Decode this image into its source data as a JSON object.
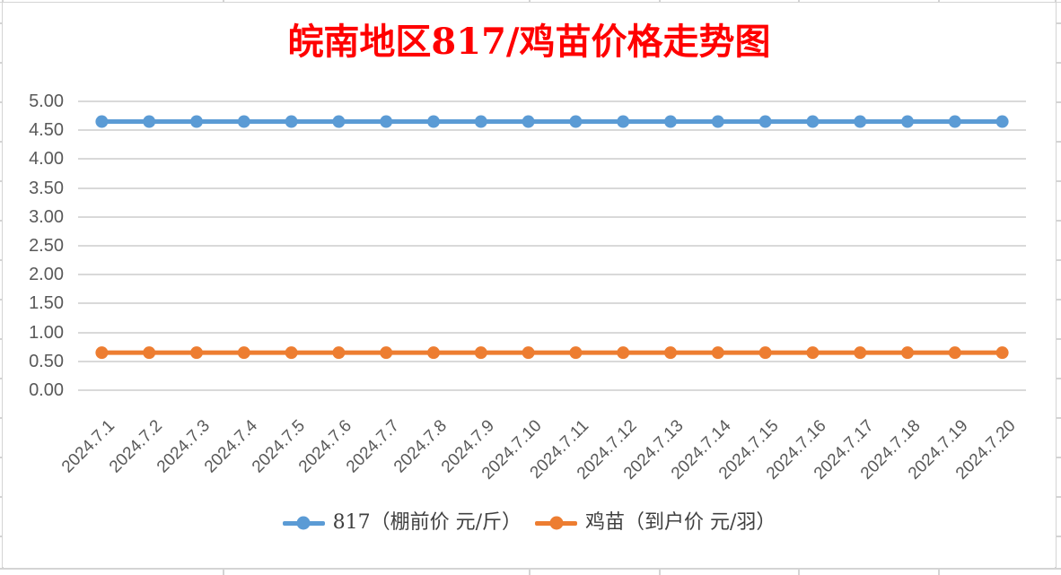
{
  "colors": {
    "title_text": "#FF0000",
    "series_817": "#5B9BD5",
    "series_jimiao": "#ED7D31",
    "gridline": "#D9D9D9",
    "axis_text": "#595959",
    "legend_text": "#404040",
    "spreadsheet_line": "#D4D4D4"
  },
  "chart_data": {
    "type": "line",
    "title": "皖南地区817/鸡苗价格走势图",
    "categories": [
      "2024.7.1",
      "2024.7.2",
      "2024.7.3",
      "2024.7.4",
      "2024.7.5",
      "2024.7.6",
      "2024.7.7",
      "2024.7.8",
      "2024.7.9",
      "2024.7.10",
      "2024.7.11",
      "2024.7.12",
      "2024.7.13",
      "2024.7.14",
      "2024.7.15",
      "2024.7.16",
      "2024.7.17",
      "2024.7.18",
      "2024.7.19",
      "2024.7.20"
    ],
    "series": [
      {
        "name": "817（棚前价 元/斤）",
        "color": "#5B9BD5",
        "values": [
          4.65,
          4.65,
          4.65,
          4.65,
          4.65,
          4.65,
          4.65,
          4.65,
          4.65,
          4.65,
          4.65,
          4.65,
          4.65,
          4.65,
          4.65,
          4.65,
          4.65,
          4.65,
          4.65,
          4.65
        ]
      },
      {
        "name": "鸡苗（到户价 元/羽）",
        "color": "#ED7D31",
        "values": [
          0.65,
          0.65,
          0.65,
          0.65,
          0.65,
          0.65,
          0.65,
          0.65,
          0.65,
          0.65,
          0.65,
          0.65,
          0.65,
          0.65,
          0.65,
          0.65,
          0.65,
          0.65,
          0.65,
          0.65
        ]
      }
    ],
    "ylim": [
      0,
      5
    ],
    "ytick_step": 0.5,
    "ytick_labels": [
      "5.00",
      "4.50",
      "4.00",
      "3.50",
      "3.00",
      "2.50",
      "2.00",
      "1.50",
      "1.00",
      "0.50",
      "0.00"
    ],
    "grid": true,
    "legend_position": "bottom",
    "x_label_rotation": -45,
    "marker": "circle"
  }
}
